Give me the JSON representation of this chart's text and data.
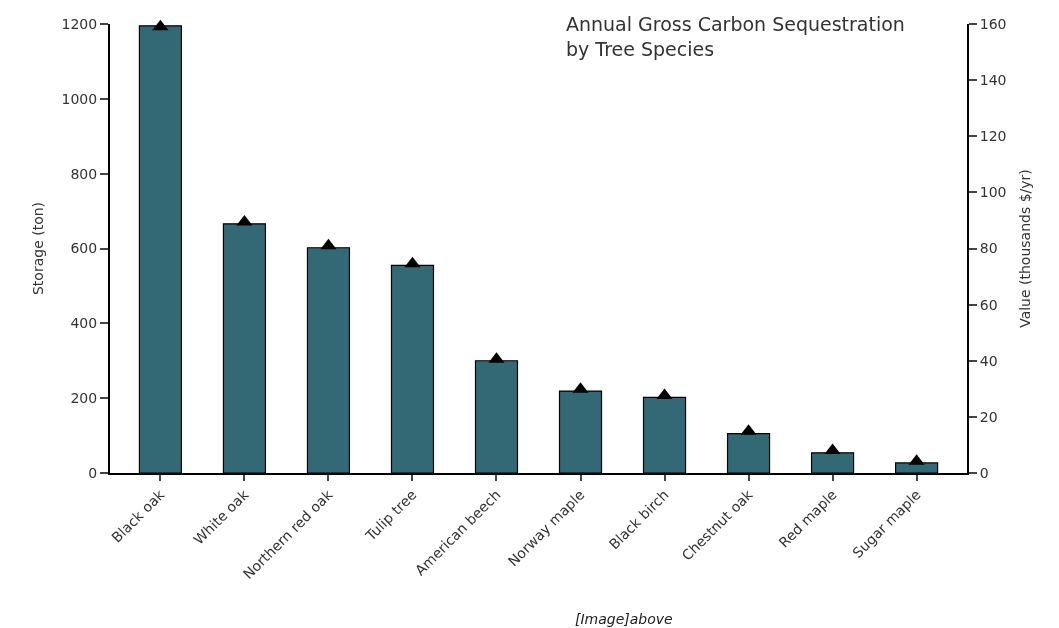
{
  "chart_data": {
    "type": "bar",
    "title": "Annual Gross Carbon Sequestration\nby Tree Species",
    "ylabel": "Storage (ton)",
    "y2label": "Value (thousands $/yr)",
    "categories": [
      "Black oak",
      "White oak",
      "Northern red oak",
      "Tulip tree",
      "American beech",
      "Norway maple",
      "Black birch",
      "Chestnut oak",
      "Red maple",
      "Sugar maple"
    ],
    "series": [
      {
        "color": "#336875",
        "values": [
          1195,
          666,
          602,
          555,
          300,
          219,
          202,
          105,
          54,
          27
        ]
      },
      {
        "type": "scatter",
        "axis": "y2",
        "marker": "triangle",
        "color": "#000000",
        "values": [
          159,
          89.4,
          81,
          74.6,
          40.5,
          29.8,
          27.6,
          14.9,
          8.0,
          4.2
        ]
      }
    ],
    "ylim": [
      0,
      1200
    ],
    "yticks": [
      0,
      200,
      400,
      600,
      800,
      1000,
      1200
    ],
    "y2lim": [
      0,
      160
    ],
    "y2ticks": [
      0,
      20,
      40,
      60,
      80,
      100,
      120,
      140,
      160
    ],
    "annotations": [
      "[Image]above"
    ]
  }
}
